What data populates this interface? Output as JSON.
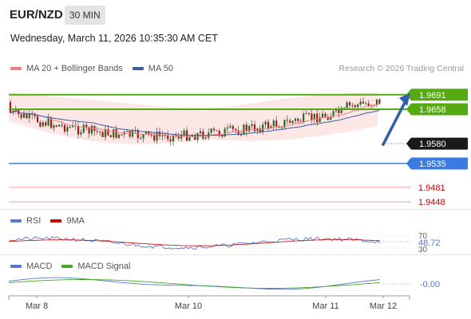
{
  "header": {
    "pair": "EUR/NZD",
    "timeframe": "30 MIN"
  },
  "datetime": "Wednesday, March 11, 2026 10:35:30 AM CET",
  "legend_main": [
    {
      "label": "MA 20 + Bollinger Bands",
      "color": "#f08080"
    },
    {
      "label": "MA 50",
      "color": "#3a5e9a"
    }
  ],
  "credit": "Research © 2026 Trading Central",
  "legend_rsi": [
    {
      "label": "RSI",
      "color": "#5577cc"
    },
    {
      "label": "9MA",
      "color": "#cc0000"
    }
  ],
  "legend_macd": [
    {
      "label": "MACD",
      "color": "#5577cc"
    },
    {
      "label": "MACD Signal",
      "color": "#44aa22"
    }
  ],
  "chart_data": {
    "type": "candlestick",
    "price_axis": [
      1.943,
      1.972
    ],
    "x_ticks": [
      "Mar 8",
      "Mar 10",
      "Mar 11",
      "Mar 12"
    ],
    "levels": [
      {
        "label": "1.9691",
        "value": 1.9691,
        "kind": "resistance",
        "color": "#55aa11"
      },
      {
        "label": "1.9658",
        "value": 1.9658,
        "kind": "resistance",
        "color": "#55aa11"
      },
      {
        "label": "1.9580",
        "value": 1.958,
        "kind": "last",
        "color": "#1a1a1a"
      },
      {
        "label": "1.9535",
        "value": 1.9535,
        "kind": "pivot",
        "color": "#3b7ae0"
      },
      {
        "label": "1.9481",
        "value": 1.9481,
        "kind": "support",
        "color": "#cc0000"
      },
      {
        "label": "1.9448",
        "value": 1.9448,
        "kind": "support",
        "color": "#cc0000"
      }
    ],
    "rsi": {
      "ticks": [
        "70",
        "30"
      ],
      "value_label": "48.72",
      "range": [
        30,
        70
      ]
    },
    "macd": {
      "value_label": "-0.00"
    },
    "arrow": {
      "from": 1.9578,
      "to": 1.9691
    }
  }
}
